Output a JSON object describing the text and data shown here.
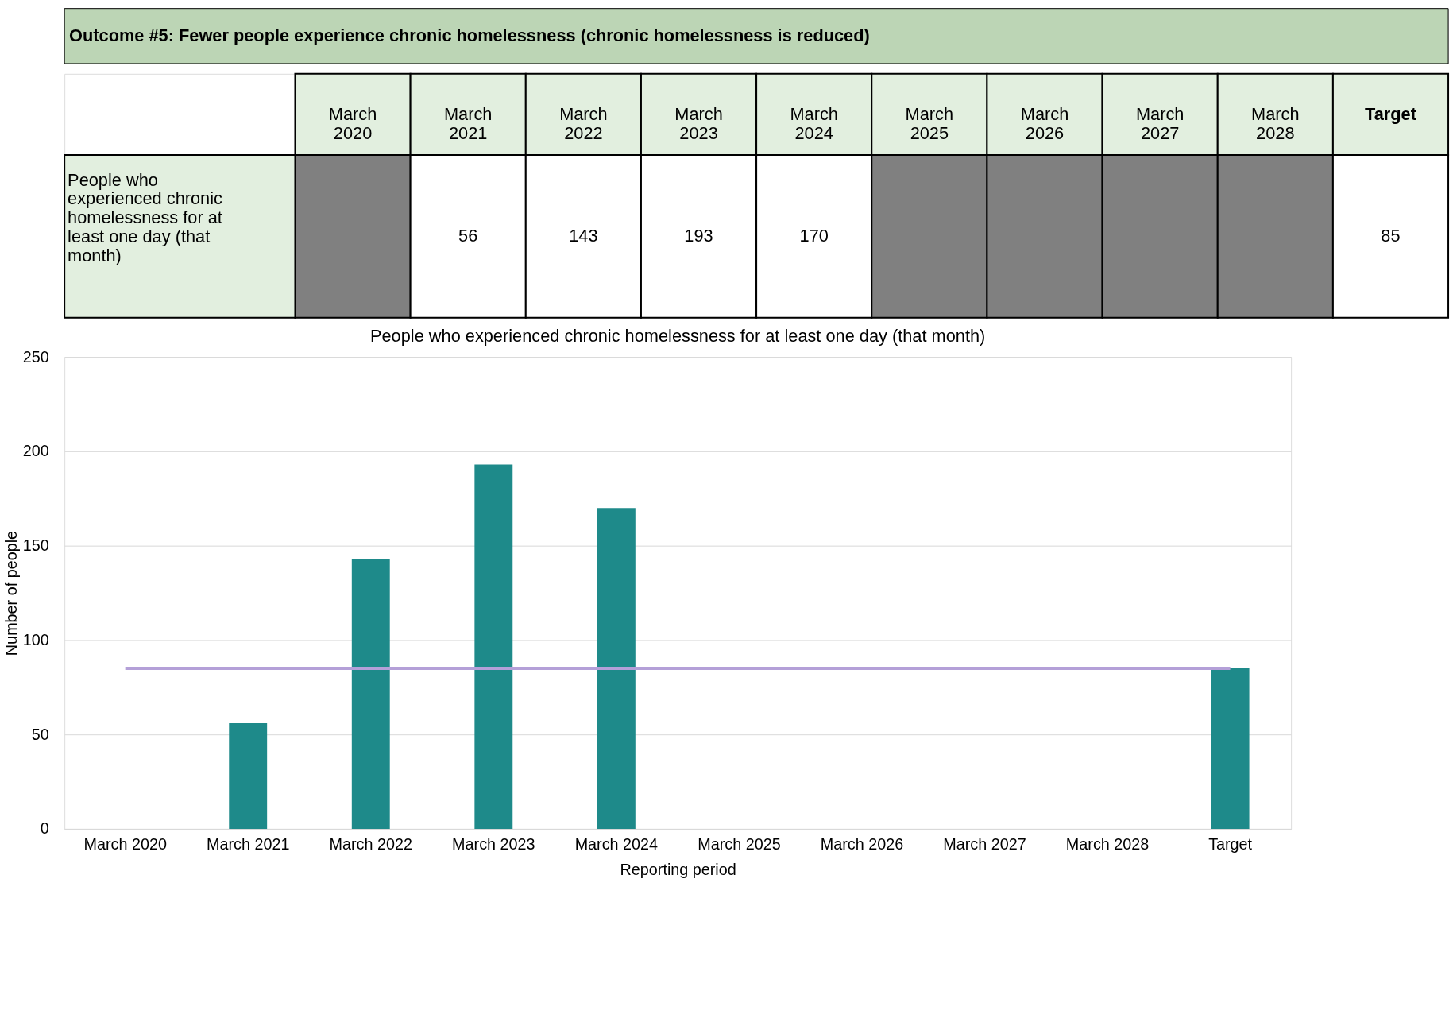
{
  "chart_data": [
    {
      "type": "heatmap",
      "title": "Outcome #5: Fewer people experience chronic homelessness (chronic homelessness is reduced)",
      "categories": [
        "March 2020",
        "March 2021",
        "March 2022",
        "March 2023",
        "March 2024",
        "March 2025",
        "March 2026",
        "March 2027",
        "March 2028",
        "Target"
      ],
      "y_categories": [
        "People who experienced chronic homelessness for at least one day (that month)"
      ],
      "cells": [
        [
          null,
          56,
          143,
          193,
          170,
          null,
          null,
          null,
          null,
          85
        ]
      ],
      "cell_labels": [
        [
          null,
          "56",
          "143",
          "193",
          "170",
          null,
          null,
          null,
          null,
          "85"
        ]
      ]
    },
    {
      "type": "bar",
      "title": "People who experienced chronic homelessness for at least one day (that month)",
      "xlabel": "Reporting period",
      "ylabel": "Number of people",
      "categories": [
        "March 2020",
        "March 2021",
        "March 2022",
        "March 2023",
        "March 2024",
        "March 2025",
        "March 2026",
        "March 2027",
        "March 2028",
        "Target"
      ],
      "series": [
        {
          "color": "#1e8a8a",
          "values": [
            null,
            56,
            143,
            193,
            170,
            null,
            null,
            null,
            null,
            85
          ]
        }
      ],
      "ylim": [
        0,
        250
      ],
      "yticks": [
        0,
        50,
        100,
        150,
        200,
        250
      ],
      "grid": "y",
      "ref_lines": [
        {
          "axis": "y",
          "value": 85,
          "color": "#b4a0d8"
        }
      ]
    }
  ]
}
